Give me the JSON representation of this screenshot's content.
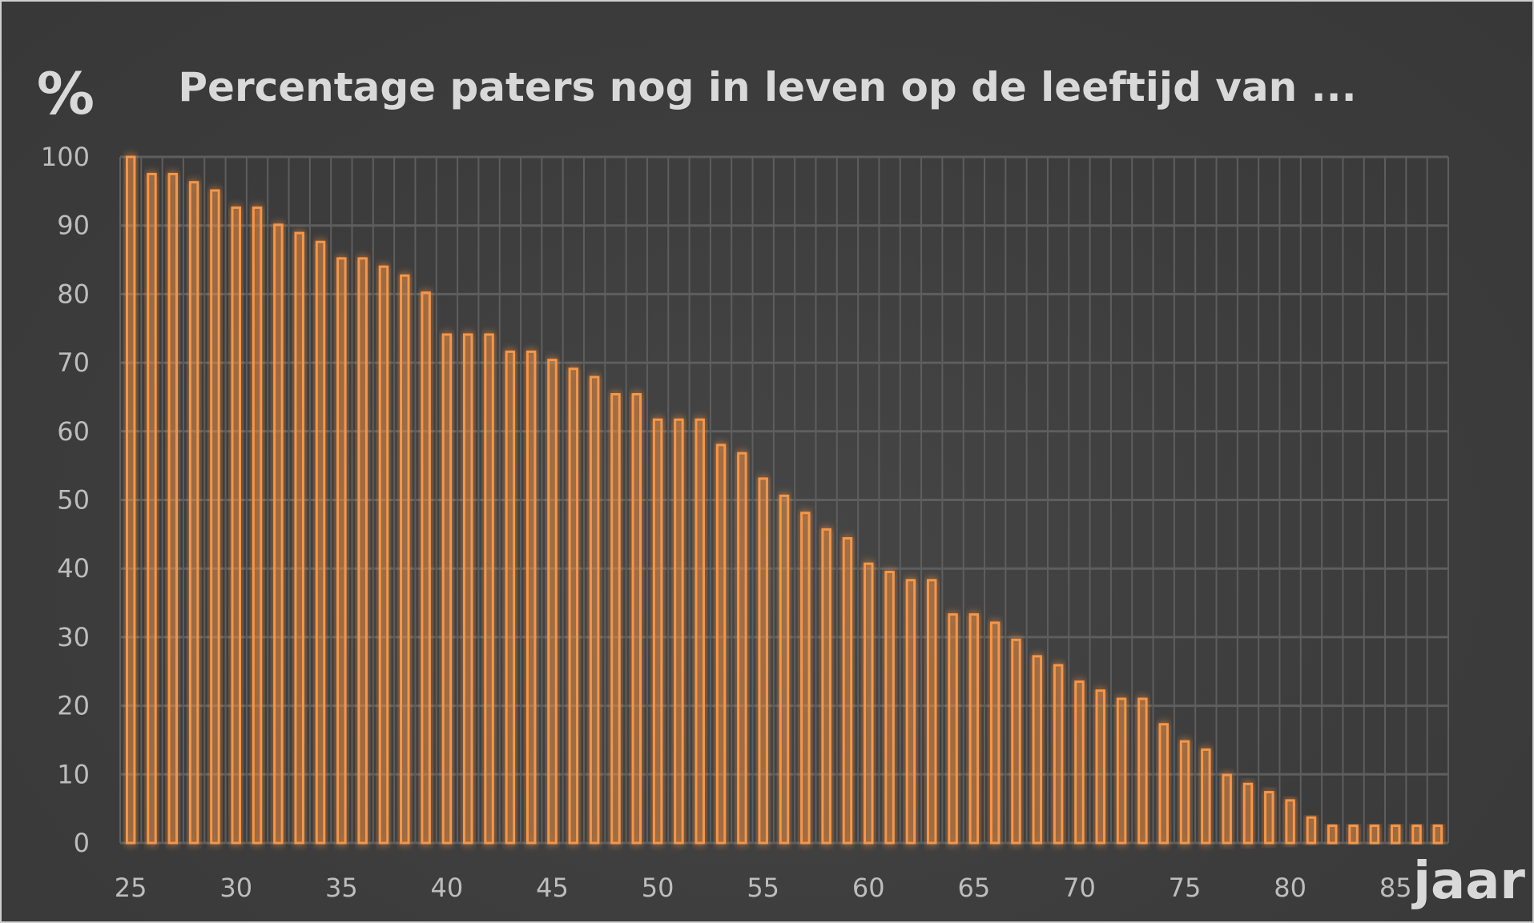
{
  "chart_data": {
    "type": "bar",
    "title": "Percentage paters nog in leven op de leeftijd van ...",
    "ylabel": "%",
    "xlabel": "jaar",
    "ylim": [
      0,
      100
    ],
    "yticks": [
      "0",
      "10",
      "20",
      "30",
      "40",
      "50",
      "60",
      "70",
      "80",
      "90",
      "100"
    ],
    "xticks": [
      "25",
      "30",
      "35",
      "40",
      "45",
      "50",
      "55",
      "60",
      "65",
      "70",
      "75",
      "80",
      "85"
    ],
    "grid": true,
    "x": [
      25,
      26,
      27,
      28,
      29,
      30,
      31,
      32,
      33,
      34,
      35,
      36,
      37,
      38,
      39,
      40,
      41,
      42,
      43,
      44,
      45,
      46,
      47,
      48,
      49,
      50,
      51,
      52,
      53,
      54,
      55,
      56,
      57,
      58,
      59,
      60,
      61,
      62,
      63,
      64,
      65,
      66,
      67,
      68,
      69,
      70,
      71,
      72,
      73,
      74,
      75,
      76,
      77,
      78,
      79,
      80,
      81,
      82,
      83,
      84,
      85,
      86,
      87
    ],
    "values": [
      100,
      97.5,
      97.5,
      96.3,
      95.1,
      92.6,
      92.6,
      90.1,
      88.9,
      87.6,
      85.2,
      85.2,
      84,
      82.7,
      80.2,
      74.1,
      74.1,
      74.1,
      71.6,
      71.6,
      70.4,
      69.1,
      67.9,
      65.4,
      65.4,
      61.7,
      61.7,
      61.7,
      58,
      56.8,
      53.1,
      50.6,
      48.1,
      45.7,
      44.4,
      40.7,
      39.5,
      38.3,
      38.3,
      33.3,
      33.3,
      32.1,
      29.6,
      27.2,
      25.9,
      23.5,
      22.2,
      21,
      21,
      17.3,
      14.8,
      13.6,
      9.9,
      8.6,
      7.4,
      6.2,
      3.7,
      2.5,
      2.5,
      2.5,
      2.5,
      2.5,
      2.5
    ],
    "colors": {
      "bar": "#f79646",
      "grid": "#5e5e5e",
      "background": "#3f3f3f"
    }
  }
}
